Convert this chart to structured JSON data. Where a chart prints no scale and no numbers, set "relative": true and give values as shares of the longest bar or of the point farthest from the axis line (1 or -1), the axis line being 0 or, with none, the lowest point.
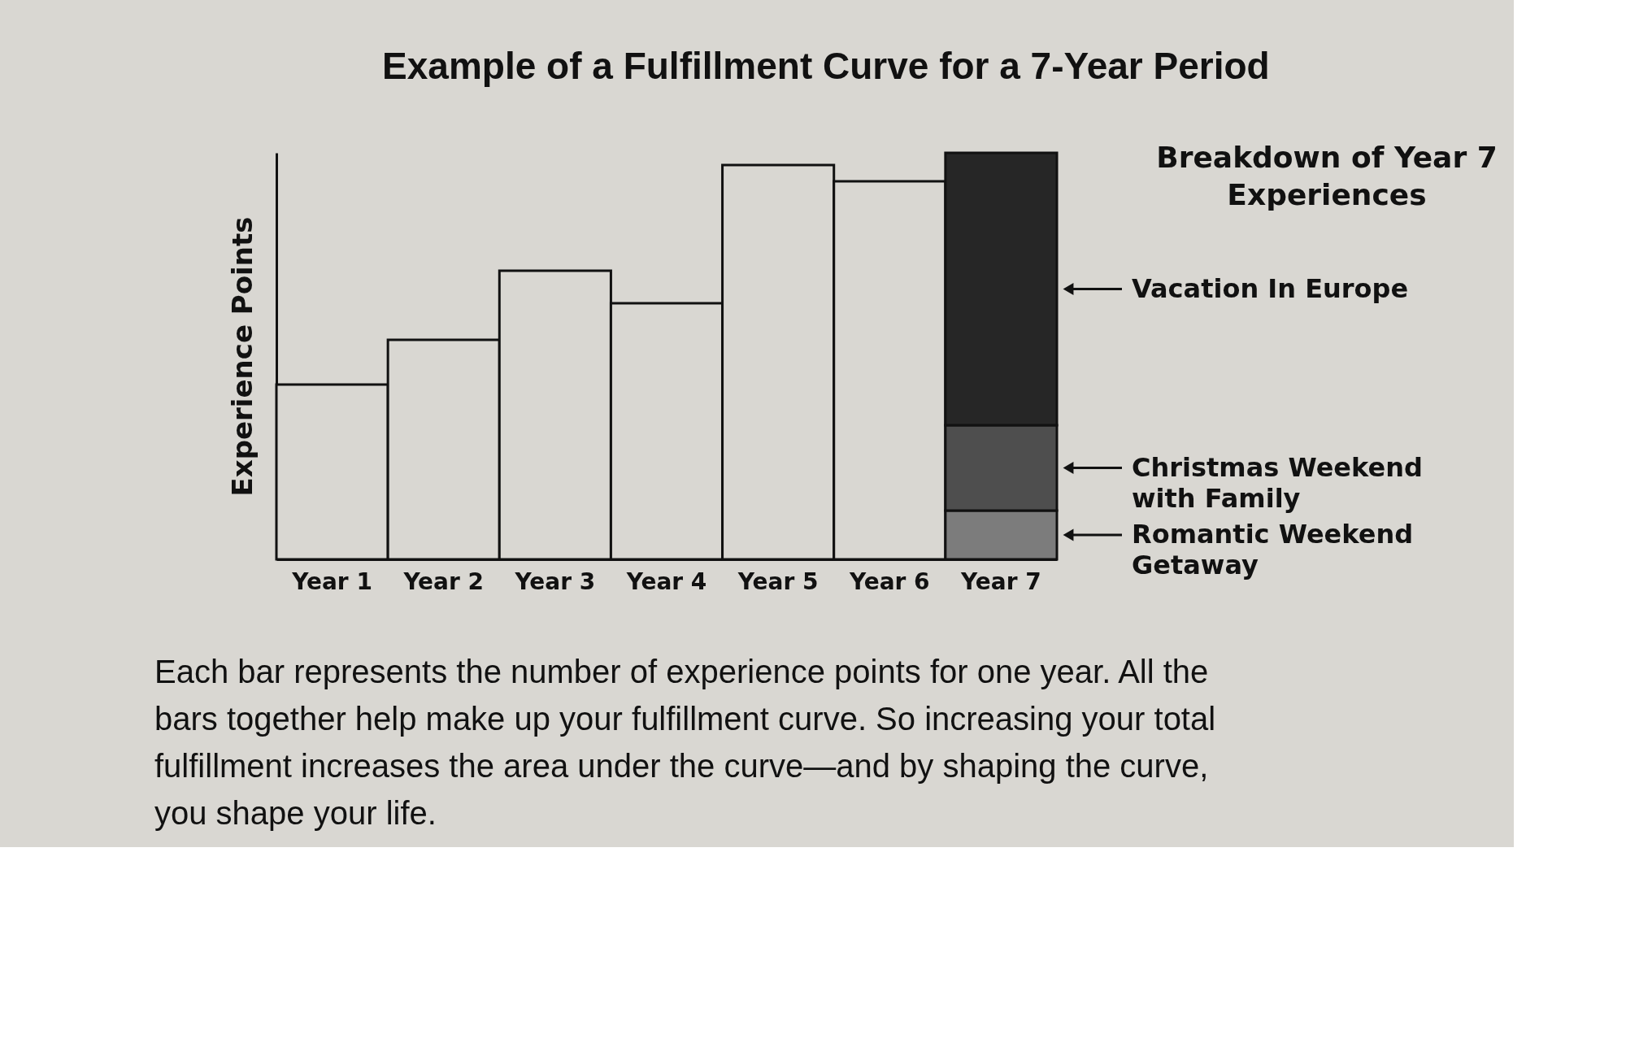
{
  "chart_data": {
    "type": "bar",
    "title": "Example of a Fulfillment Curve for a 7-Year Period",
    "ylabel": "Experience Points",
    "categories": [
      "Year 1",
      "Year 2",
      "Year 3",
      "Year 4",
      "Year 5",
      "Year 6",
      "Year 7"
    ],
    "relative": true,
    "stacked": true,
    "legend": "right",
    "legend_title": "Breakdown of Year 7 Experiences",
    "series": [
      {
        "color": "#d9d7d2",
        "values": [
          0.43,
          0.54,
          0.71,
          0.63,
          0.97,
          0.93,
          null
        ]
      },
      {
        "name": "Romantic Weekend Getaway",
        "color": "#7c7c7c",
        "values": [
          null,
          null,
          null,
          null,
          null,
          null,
          0.12
        ]
      },
      {
        "name": "Christmas Weekend with Family",
        "color": "#4e4e4e",
        "values": [
          null,
          null,
          null,
          null,
          null,
          null,
          0.21
        ]
      },
      {
        "name": "Vacation In Europe",
        "color": "#262626",
        "values": [
          null,
          null,
          null,
          null,
          null,
          null,
          0.67
        ]
      }
    ],
    "annotations": [
      "Each bar represents the number of experience points for one year. All the bars together help make up your fulfillment curve. So increasing your total fulfillment increases the area under the curve—and by shaping the curve, you shape your life."
    ]
  }
}
